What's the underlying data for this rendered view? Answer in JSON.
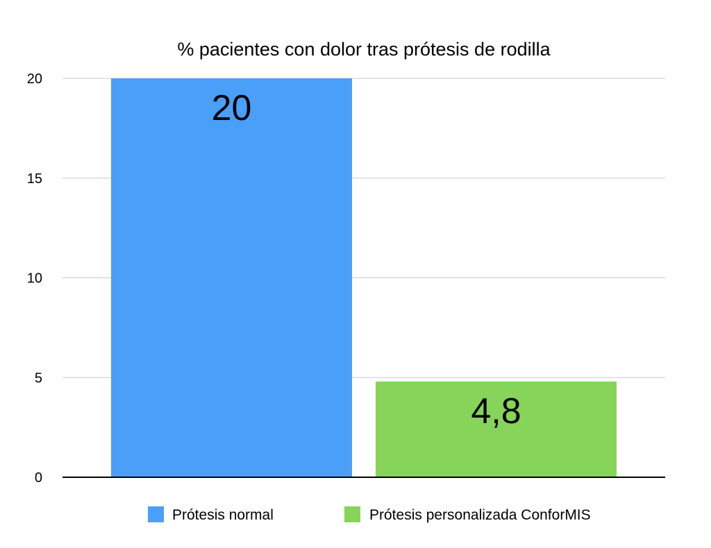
{
  "chart_data": {
    "type": "bar",
    "title": "% pacientes con dolor tras prótesis de rodilla",
    "xlabel": "",
    "ylabel": "",
    "ylim": [
      0,
      20
    ],
    "yticks": [
      {
        "value": 0,
        "label": "0"
      },
      {
        "value": 5,
        "label": "5"
      },
      {
        "value": 10,
        "label": "10"
      },
      {
        "value": 15,
        "label": "15"
      },
      {
        "value": 20,
        "label": "20"
      }
    ],
    "grid": true,
    "legend_position": "bottom",
    "series": [
      {
        "name": "Prótesis normal",
        "value": 20,
        "label": "20",
        "color": "#4A9FF8"
      },
      {
        "name": "Prótesis personalizada ConforMIS",
        "value": 4.8,
        "label": "4,8",
        "color": "#86D459"
      }
    ]
  }
}
